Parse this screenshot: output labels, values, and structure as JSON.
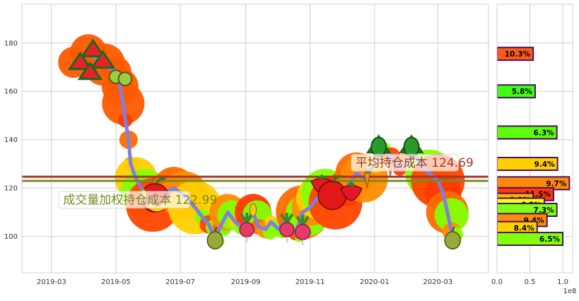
{
  "chart_data": [
    {
      "type": "line",
      "title": "",
      "xlabel": "",
      "ylabel": "",
      "x_tick_labels": [
        "2019-03",
        "2019-05",
        "2019-07",
        "2019-09",
        "2019-11",
        "2020-01",
        "2020-03"
      ],
      "x_tick_dates": [
        "2019-03-01",
        "2019-05-01",
        "2019-07-01",
        "2019-09-01",
        "2019-11-01",
        "2020-01-01",
        "2020-03-01"
      ],
      "xlim": [
        "2019-02-01",
        "2020-04-18"
      ],
      "y_ticks": [
        100,
        120,
        140,
        160,
        180
      ],
      "ylim": [
        85,
        196
      ],
      "grid": true,
      "series": [
        {
          "color": "#7f7fdf",
          "points": [
            [
              "2019-03-22",
              172
            ],
            [
              "2019-04-05",
              176
            ],
            [
              "2019-04-20",
              171
            ],
            [
              "2019-05-01",
              168
            ],
            [
              "2019-05-05",
              162
            ],
            [
              "2019-05-08",
              155
            ],
            [
              "2019-05-10",
              148
            ],
            [
              "2019-05-13",
              140
            ],
            [
              "2019-05-15",
              130
            ],
            [
              "2019-05-20",
              124
            ],
            [
              "2019-05-28",
              118
            ],
            [
              "2019-06-05",
              113
            ],
            [
              "2019-06-15",
              118
            ],
            [
              "2019-06-25",
              120
            ],
            [
              "2019-07-05",
              117
            ],
            [
              "2019-07-15",
              112
            ],
            [
              "2019-07-22",
              108
            ],
            [
              "2019-07-28",
              105
            ],
            [
              "2019-08-03",
              99
            ],
            [
              "2019-08-08",
              104
            ],
            [
              "2019-08-15",
              110
            ],
            [
              "2019-08-22",
              106
            ],
            [
              "2019-08-28",
              104
            ],
            [
              "2019-09-03",
              107
            ],
            [
              "2019-09-08",
              110
            ],
            [
              "2019-09-13",
              104
            ],
            [
              "2019-09-20",
              103
            ],
            [
              "2019-09-25",
              106
            ],
            [
              "2019-10-02",
              103
            ],
            [
              "2019-10-10",
              107
            ],
            [
              "2019-10-18",
              101
            ],
            [
              "2019-10-25",
              110
            ],
            [
              "2019-11-01",
              112
            ],
            [
              "2019-11-08",
              116
            ],
            [
              "2019-11-15",
              118
            ],
            [
              "2019-11-25",
              114
            ],
            [
              "2019-12-05",
              120
            ],
            [
              "2019-12-15",
              126
            ],
            [
              "2019-12-22",
              124
            ],
            [
              "2020-01-02",
              130
            ],
            [
              "2020-01-10",
              136
            ],
            [
              "2020-01-17",
              133
            ],
            [
              "2020-01-25",
              128
            ],
            [
              "2020-02-01",
              131
            ],
            [
              "2020-02-08",
              134
            ],
            [
              "2020-02-15",
              129
            ],
            [
              "2020-02-22",
              126
            ],
            [
              "2020-03-01",
              123
            ],
            [
              "2020-03-06",
              118
            ],
            [
              "2020-03-10",
              110
            ],
            [
              "2020-03-14",
              102
            ]
          ]
        }
      ],
      "horizontal_lines": [
        {
          "label": "平均持仓成本",
          "value": 124.69,
          "color": "#a0392c"
        },
        {
          "label": "成交量加权持仓成本",
          "value": 122.99,
          "color": "#7a8a22"
        }
      ],
      "annotations": [
        {
          "text": "平均持仓成本 124.69",
          "color": "#a0392c",
          "x": "2019-12-10",
          "y": 130.5
        },
        {
          "text": "成交量加权持仓成本 122.99",
          "color": "#7a8a22",
          "x": "2019-03-08",
          "y": 115.2
        }
      ],
      "decorations": [
        {
          "icon": "watermelon-icon",
          "x": "2019-04-12",
          "y": 172,
          "size": 62
        },
        {
          "icon": "kiwi-icon",
          "x": "2019-05-05",
          "y": 166,
          "size": 28
        },
        {
          "icon": "apple-icon",
          "x": "2019-06-07",
          "y": 116,
          "size": 40
        },
        {
          "icon": "banana-icon",
          "x": "2019-06-10",
          "y": 113,
          "size": 26
        },
        {
          "icon": "corn-icon",
          "x": "2019-05-27",
          "y": 117,
          "size": 18
        },
        {
          "icon": "pear-icon",
          "x": "2019-08-03",
          "y": 99,
          "size": 22
        },
        {
          "icon": "radish-icon",
          "x": "2019-09-02",
          "y": 104,
          "size": 30
        },
        {
          "icon": "corn-icon",
          "x": "2019-09-08",
          "y": 111,
          "size": 18
        },
        {
          "icon": "radish-icon",
          "x": "2019-10-10",
          "y": 104,
          "size": 30
        },
        {
          "icon": "radish-icon",
          "x": "2019-10-25",
          "y": 103,
          "size": 32
        },
        {
          "icon": "strawberry-icon",
          "x": "2019-11-12",
          "y": 121,
          "size": 30
        },
        {
          "icon": "apple-icon",
          "x": "2019-11-22",
          "y": 117,
          "size": 40
        },
        {
          "icon": "strawberry-icon",
          "x": "2019-12-10",
          "y": 118,
          "size": 30
        },
        {
          "icon": "carrot-icon",
          "x": "2019-12-25",
          "y": 124,
          "size": 20
        },
        {
          "icon": "watermelon-icon",
          "x": "2020-01-05",
          "y": 137,
          "size": 30
        },
        {
          "icon": "carrot-icon",
          "x": "2020-01-16",
          "y": 129,
          "size": 20
        },
        {
          "icon": "watermelon-icon",
          "x": "2020-02-05",
          "y": 137,
          "size": 30
        },
        {
          "icon": "pear-icon",
          "x": "2020-03-15",
          "y": 99,
          "size": 22
        }
      ]
    },
    {
      "type": "bar",
      "orientation": "horizontal",
      "title": "",
      "x_ticks": [
        "0.0",
        "0.5",
        "1.0"
      ],
      "x_multiplier_label": "1e8",
      "xlim": [
        0,
        1.15
      ],
      "grid": true,
      "bars": [
        {
          "label": "10.3%",
          "y": 175.5,
          "value": 0.55,
          "color": "#ff5a1a"
        },
        {
          "label": "5.8%",
          "y": 160.0,
          "value": 0.58,
          "color": "#3cff14"
        },
        {
          "label": "6.3%",
          "y": 143.0,
          "value": 0.91,
          "color": "#5cff0a"
        },
        {
          "label": "9.4%",
          "y": 130.0,
          "value": 0.92,
          "color": "#ffd000"
        },
        {
          "label": "9.7%",
          "y": 122.0,
          "value": 1.1,
          "color": "#ff8a0a"
        },
        {
          "label": "11.5%",
          "y": 117.5,
          "value": 0.86,
          "color": "#ff3a0a"
        },
        {
          "label": "9.1%",
          "y": 115.2,
          "value": 0.55,
          "color": "#ffb000"
        },
        {
          "label": "6.2%",
          "y": 113.2,
          "value": 0.72,
          "color": "#f2ff14"
        },
        {
          "label": "7.3%",
          "y": 111.0,
          "value": 0.91,
          "color": "#80ff14"
        },
        {
          "label": "9.4%",
          "y": 106.8,
          "value": 0.76,
          "color": "#ff8a0a"
        },
        {
          "label": "8.4%",
          "y": 103.5,
          "value": 0.61,
          "color": "#ffd000"
        },
        {
          "label": "6.5%",
          "y": 99.0,
          "value": 1.0,
          "color": "#84ff0a"
        }
      ],
      "bar_border_color": "#4a1060"
    }
  ]
}
